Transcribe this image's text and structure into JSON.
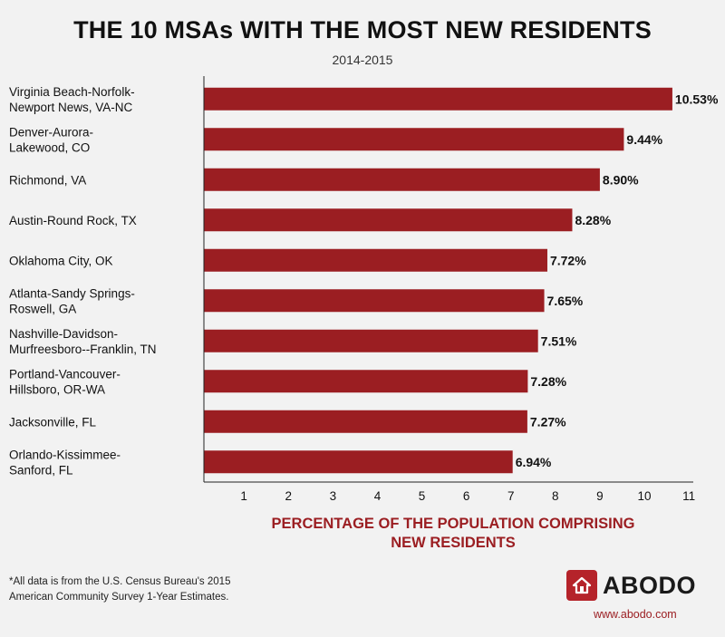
{
  "header": {
    "title": "THE 10 MSAs WITH THE MOST NEW RESIDENTS",
    "subtitle": "2014-2015"
  },
  "chart_data": {
    "type": "bar",
    "orientation": "horizontal",
    "categories": [
      [
        "Virginia Beach-Norfolk-",
        "Newport News, VA-NC"
      ],
      [
        "Denver-Aurora-",
        "Lakewood, CO"
      ],
      [
        "Richmond, VA"
      ],
      [
        "Austin-Round Rock, TX"
      ],
      [
        "Oklahoma City, OK"
      ],
      [
        "Atlanta-Sandy Springs-",
        "Roswell, GA"
      ],
      [
        "Nashville-Davidson-",
        "Murfreesboro--Franklin, TN"
      ],
      [
        "Portland-Vancouver-",
        "Hillsboro, OR-WA"
      ],
      [
        "Jacksonville, FL"
      ],
      [
        "Orlando-Kissimmee-",
        "Sanford, FL"
      ]
    ],
    "values": [
      10.53,
      9.44,
      8.9,
      8.28,
      7.72,
      7.65,
      7.51,
      7.28,
      7.27,
      6.94
    ],
    "value_labels": [
      "10.53%",
      "9.44%",
      "8.90%",
      "8.28%",
      "7.72%",
      "7.65%",
      "7.51%",
      "7.28%",
      "7.27%",
      "6.94%"
    ],
    "xlabel": [
      "PERCENTAGE OF THE POPULATION COMPRISING",
      "NEW RESIDENTS"
    ],
    "xticks": [
      "1",
      "2",
      "3",
      "4",
      "5",
      "6",
      "7",
      "8",
      "9",
      "10",
      "11"
    ],
    "xlim": [
      0,
      11
    ],
    "grid": false,
    "bar_color": "#9b1e22"
  },
  "footnote": [
    "*All data is from the U.S. Census Bureau's 2015",
    " American Community Survey 1-Year Estimates."
  ],
  "brand": {
    "name": "ABODO",
    "url": "www.abodo.com",
    "icon": "house-icon",
    "color": "#b5232a"
  }
}
